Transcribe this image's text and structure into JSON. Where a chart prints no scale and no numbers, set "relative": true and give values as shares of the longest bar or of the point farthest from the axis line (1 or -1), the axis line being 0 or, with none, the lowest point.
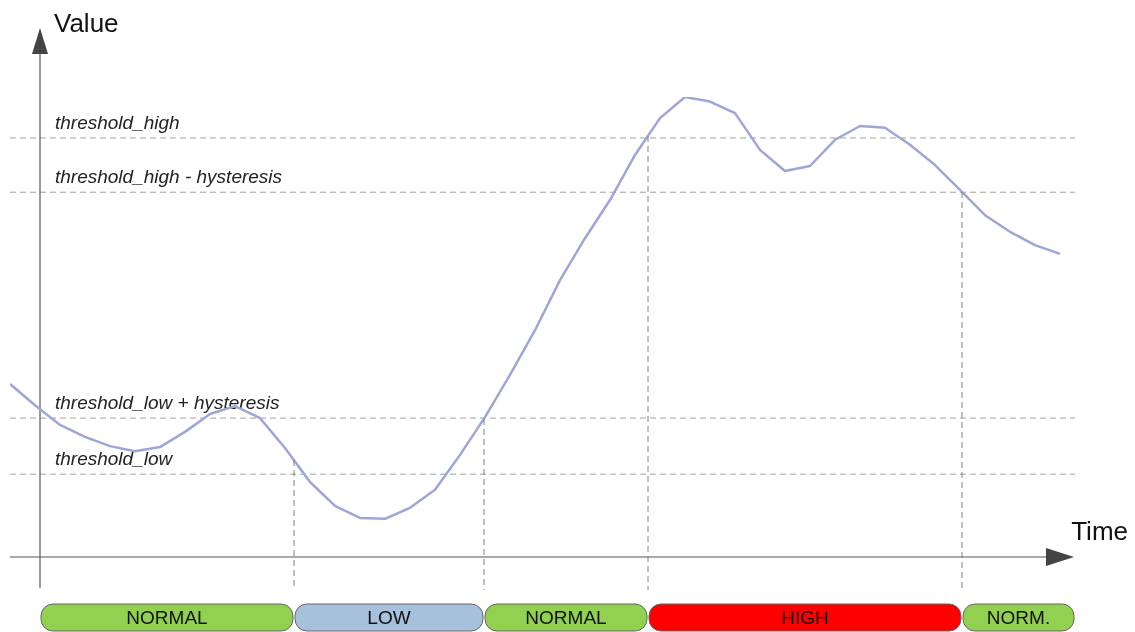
{
  "chart_data": {
    "type": "line",
    "xlabel": "Time",
    "ylabel": "Value",
    "relative": true,
    "categories": [
      null,
      null,
      null,
      null,
      null,
      null,
      null,
      null,
      null,
      null,
      null,
      null,
      null,
      null,
      null,
      null,
      null,
      null,
      null,
      null,
      null,
      null,
      null,
      null,
      null,
      null,
      null,
      null,
      null,
      null,
      null,
      null,
      null,
      null,
      null,
      null,
      null,
      null,
      null,
      null,
      null,
      null,
      null
    ],
    "annotations": [
      "NORMAL",
      "LOW",
      "NORMAL",
      "HIGH",
      "NORM."
    ],
    "series": [
      {
        "color": "#9ea6d8",
        "values": [
          0.376,
          0.33,
          0.287,
          0.261,
          0.241,
          0.23,
          0.239,
          0.272,
          0.311,
          0.328,
          0.302,
          0.237,
          0.163,
          0.111,
          0.085,
          0.083,
          0.107,
          0.146,
          0.222,
          0.304,
          0.396,
          0.493,
          0.602,
          0.693,
          0.776,
          0.874,
          0.954,
          1,
          0.99,
          0.965,
          0.885,
          0.839,
          0.85,
          0.907,
          0.937,
          0.933,
          0.896,
          0.852,
          0.798,
          0.743,
          0.707,
          0.678,
          0.659
        ]
      }
    ],
    "ref_lines": [
      {
        "axis": "y",
        "value": 0.911,
        "label": "threshold_high",
        "color": "#a0a0a0",
        "line_style": "dashed"
      },
      {
        "axis": "y",
        "value": 0.793,
        "label": "threshold_high - hysteresis",
        "color": "#a0a0a0",
        "line_style": "dashed"
      },
      {
        "axis": "y",
        "value": 0.302,
        "label": "threshold_low + hysteresis",
        "color": "#a0a0a0",
        "line_style": "dashed"
      },
      {
        "axis": "y",
        "value": 0.18,
        "label": "threshold_low",
        "color": "#a0a0a0",
        "line_style": "dashed"
      }
    ]
  }
}
